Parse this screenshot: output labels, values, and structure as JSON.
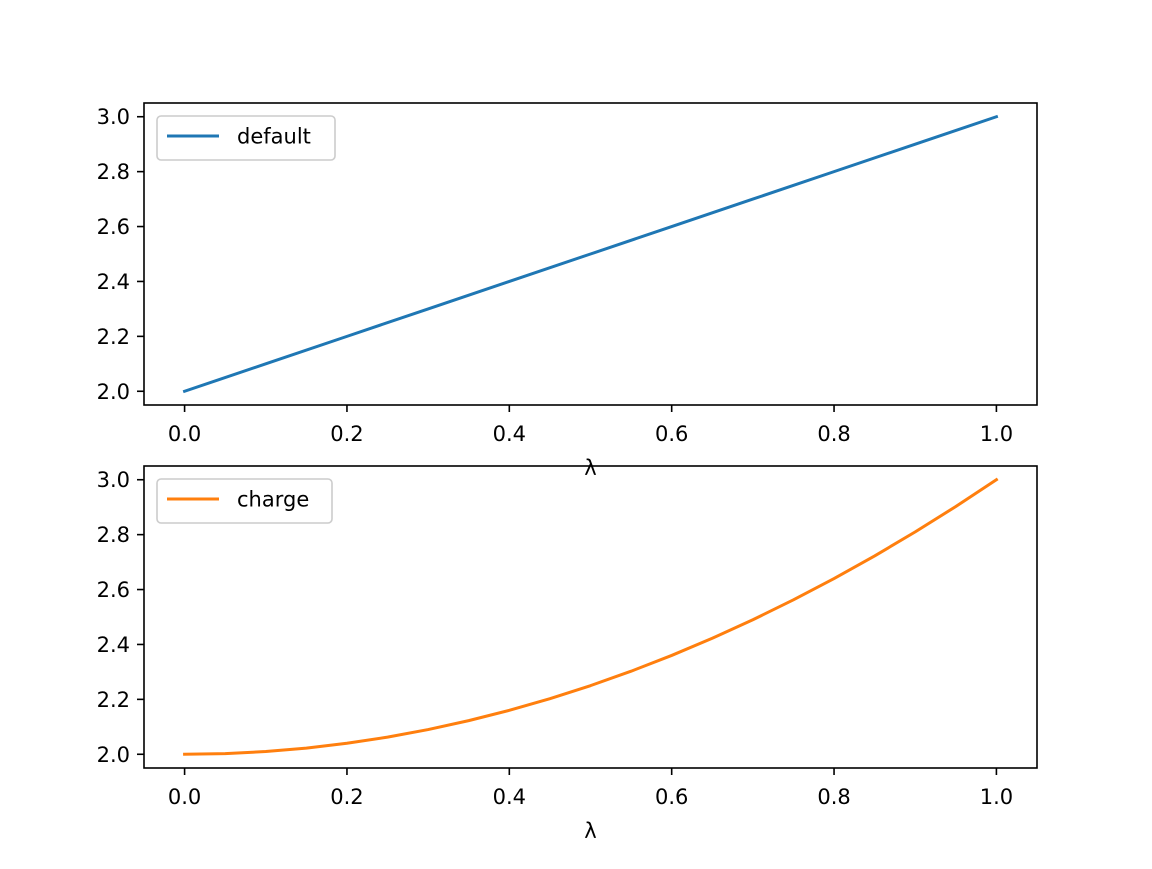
{
  "figure": {
    "background": "#ffffff"
  },
  "chart_data": [
    {
      "type": "line",
      "xlabel": "λ",
      "ylabel": "",
      "xlim": [
        -0.05,
        1.05
      ],
      "ylim": [
        1.95,
        3.05
      ],
      "xticks": [
        0.0,
        0.2,
        0.4,
        0.6,
        0.8,
        1.0
      ],
      "xtick_labels": [
        "0.0",
        "0.2",
        "0.4",
        "0.6",
        "0.8",
        "1.0"
      ],
      "yticks": [
        2.0,
        2.2,
        2.4,
        2.6,
        2.8,
        3.0
      ],
      "ytick_labels": [
        "2.0",
        "2.2",
        "2.4",
        "2.6",
        "2.8",
        "3.0"
      ],
      "grid": false,
      "legend_position": "top-left",
      "series": [
        {
          "name": "default",
          "color": "#1f77b4",
          "x": [
            0.0,
            0.1,
            0.2,
            0.3,
            0.4,
            0.5,
            0.6,
            0.7,
            0.8,
            0.9,
            1.0
          ],
          "y": [
            2.0,
            2.1,
            2.2,
            2.3,
            2.4,
            2.5,
            2.6,
            2.7,
            2.8,
            2.9,
            3.0
          ]
        }
      ]
    },
    {
      "type": "line",
      "xlabel": "λ",
      "ylabel": "",
      "xlim": [
        -0.05,
        1.05
      ],
      "ylim": [
        1.95,
        3.05
      ],
      "xticks": [
        0.0,
        0.2,
        0.4,
        0.6,
        0.8,
        1.0
      ],
      "xtick_labels": [
        "0.0",
        "0.2",
        "0.4",
        "0.6",
        "0.8",
        "1.0"
      ],
      "yticks": [
        2.0,
        2.2,
        2.4,
        2.6,
        2.8,
        3.0
      ],
      "ytick_labels": [
        "2.0",
        "2.2",
        "2.4",
        "2.6",
        "2.8",
        "3.0"
      ],
      "grid": false,
      "legend_position": "top-left",
      "series": [
        {
          "name": "charge",
          "color": "#ff7f0e",
          "x": [
            0.0,
            0.05,
            0.1,
            0.15,
            0.2,
            0.25,
            0.3,
            0.35,
            0.4,
            0.45,
            0.5,
            0.55,
            0.6,
            0.65,
            0.7,
            0.75,
            0.8,
            0.85,
            0.9,
            0.95,
            1.0
          ],
          "y": [
            2.0,
            2.0025,
            2.01,
            2.0225,
            2.04,
            2.0625,
            2.09,
            2.1225,
            2.16,
            2.2025,
            2.25,
            2.3025,
            2.36,
            2.4225,
            2.49,
            2.5625,
            2.64,
            2.7225,
            2.81,
            2.9025,
            3.0
          ]
        }
      ]
    }
  ]
}
